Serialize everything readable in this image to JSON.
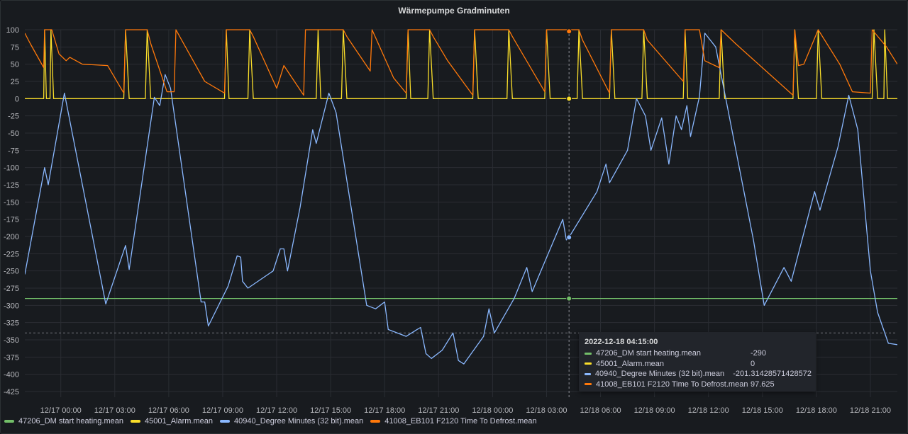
{
  "title": "Wärmepumpe Gradminuten",
  "colors": {
    "s1": "#73bf69",
    "s2": "#fade2a",
    "s3": "#8ab8ff",
    "s4": "#ff780a"
  },
  "legend": [
    {
      "label": "47206_DM start heating.mean",
      "color": "#73bf69"
    },
    {
      "label": "45001_Alarm.mean",
      "color": "#fade2a"
    },
    {
      "label": "40940_Degree Minutes (32 bit).mean",
      "color": "#8ab8ff"
    },
    {
      "label": "41008_EB101 F2120 Time To Defrost.mean",
      "color": "#ff780a"
    }
  ],
  "tooltip": {
    "time": "2022-12-18 04:15:00",
    "rows": [
      {
        "name": "47206_DM start heating.mean",
        "value": "-290",
        "color": "#73bf69"
      },
      {
        "name": "45001_Alarm.mean",
        "value": "0",
        "color": "#fade2a"
      },
      {
        "name": "40940_Degree Minutes (32 bit).mean",
        "value": "-201.31428571428572",
        "color": "#8ab8ff"
      },
      {
        "name": "41008_EB101 F2120 Time To Defrost.mean",
        "value": "97.625",
        "color": "#ff780a"
      }
    ]
  },
  "chart_data": {
    "type": "line",
    "title": "Wärmepumpe Gradminuten",
    "xlabel": "",
    "ylabel": "",
    "x_unit": "hours since 12/16 22:00",
    "x_range": [
      0,
      48.5
    ],
    "ylim": [
      -425,
      100
    ],
    "y_ticks": [
      100,
      75,
      50,
      25,
      0,
      -25,
      -50,
      -75,
      -100,
      -125,
      -150,
      -175,
      -200,
      -225,
      -250,
      -275,
      -300,
      -325,
      -350,
      -375,
      -400,
      -425
    ],
    "x_ticks": [
      {
        "h": 2,
        "label": "12/17 00:00"
      },
      {
        "h": 5,
        "label": "12/17 03:00"
      },
      {
        "h": 8,
        "label": "12/17 06:00"
      },
      {
        "h": 11,
        "label": "12/17 09:00"
      },
      {
        "h": 14,
        "label": "12/17 12:00"
      },
      {
        "h": 17,
        "label": "12/17 15:00"
      },
      {
        "h": 20,
        "label": "12/17 18:00"
      },
      {
        "h": 23,
        "label": "12/17 21:00"
      },
      {
        "h": 26,
        "label": "12/18 00:00"
      },
      {
        "h": 29,
        "label": "12/18 03:00"
      },
      {
        "h": 32,
        "label": "12/18 06:00"
      },
      {
        "h": 35,
        "label": "12/18 09:00"
      },
      {
        "h": 38,
        "label": "12/18 12:00"
      },
      {
        "h": 41,
        "label": "12/18 15:00"
      },
      {
        "h": 44,
        "label": "12/18 18:00"
      },
      {
        "h": 47,
        "label": "12/18 21:00"
      }
    ],
    "grid": true,
    "legend_position": "bottom",
    "crosshair_x": 30.25,
    "series": [
      {
        "name": "47206_DM start heating.mean",
        "color": "#73bf69",
        "points": [
          [
            0,
            -290
          ],
          [
            48.5,
            -290
          ]
        ]
      },
      {
        "name": "45001_Alarm.mean",
        "color": "#fade2a",
        "points": [
          [
            0,
            0
          ],
          [
            1.05,
            0
          ],
          [
            1.1,
            100
          ],
          [
            1.2,
            0
          ],
          [
            1.4,
            0
          ],
          [
            1.45,
            100
          ],
          [
            1.6,
            0
          ],
          [
            5.5,
            0
          ],
          [
            5.6,
            100
          ],
          [
            5.8,
            0
          ],
          [
            6.7,
            0
          ],
          [
            6.8,
            100
          ],
          [
            7.0,
            0
          ],
          [
            11.1,
            0
          ],
          [
            11.2,
            100
          ],
          [
            11.35,
            0
          ],
          [
            12.4,
            0
          ],
          [
            12.5,
            100
          ],
          [
            12.7,
            0
          ],
          [
            16.2,
            0
          ],
          [
            16.3,
            100
          ],
          [
            16.45,
            0
          ],
          [
            17.6,
            0
          ],
          [
            17.7,
            100
          ],
          [
            17.9,
            0
          ],
          [
            21.2,
            0
          ],
          [
            21.3,
            100
          ],
          [
            21.45,
            0
          ],
          [
            22.4,
            0
          ],
          [
            22.5,
            100
          ],
          [
            22.7,
            0
          ],
          [
            24.9,
            0
          ],
          [
            25.0,
            100
          ],
          [
            25.2,
            0
          ],
          [
            26.8,
            0
          ],
          [
            26.9,
            100
          ],
          [
            27.1,
            0
          ],
          [
            28.9,
            0
          ],
          [
            29.0,
            100
          ],
          [
            29.2,
            0
          ],
          [
            30.7,
            0
          ],
          [
            30.8,
            100
          ],
          [
            31.0,
            0
          ],
          [
            32.5,
            0
          ],
          [
            32.6,
            100
          ],
          [
            32.8,
            0
          ],
          [
            34.3,
            0
          ],
          [
            34.4,
            100
          ],
          [
            34.6,
            0
          ],
          [
            36.6,
            0
          ],
          [
            36.7,
            100
          ],
          [
            36.85,
            0
          ],
          [
            38.6,
            0
          ],
          [
            38.7,
            100
          ],
          [
            38.9,
            0
          ],
          [
            42.7,
            0
          ],
          [
            42.8,
            100
          ],
          [
            43.0,
            0
          ],
          [
            44.0,
            0
          ],
          [
            44.1,
            100
          ],
          [
            44.3,
            0
          ],
          [
            47.1,
            0
          ],
          [
            47.2,
            100
          ],
          [
            47.4,
            0
          ],
          [
            47.75,
            0
          ],
          [
            47.8,
            100
          ],
          [
            47.95,
            0
          ],
          [
            48.5,
            0
          ]
        ]
      },
      {
        "name": "40940_Degree Minutes (32 bit).mean",
        "color": "#8ab8ff",
        "points": [
          [
            0,
            -255
          ],
          [
            1.1,
            -100
          ],
          [
            1.3,
            -125
          ],
          [
            2.2,
            8
          ],
          [
            4.5,
            -298
          ],
          [
            5.6,
            -213
          ],
          [
            5.8,
            -248
          ],
          [
            7.2,
            2
          ],
          [
            7.5,
            -10
          ],
          [
            7.8,
            35
          ],
          [
            8.1,
            15
          ],
          [
            9.8,
            -295
          ],
          [
            10.0,
            -295
          ],
          [
            10.2,
            -330
          ],
          [
            11.3,
            -272
          ],
          [
            11.8,
            -228
          ],
          [
            12.0,
            -230
          ],
          [
            12.1,
            -265
          ],
          [
            12.4,
            -275
          ],
          [
            13.8,
            -250
          ],
          [
            14.2,
            -218
          ],
          [
            14.4,
            -218
          ],
          [
            14.6,
            -250
          ],
          [
            15.3,
            -158
          ],
          [
            16.0,
            -45
          ],
          [
            16.2,
            -65
          ],
          [
            16.9,
            8
          ],
          [
            17.3,
            -20
          ],
          [
            19.0,
            -300
          ],
          [
            19.5,
            -305
          ],
          [
            20.0,
            -295
          ],
          [
            20.2,
            -335
          ],
          [
            21.2,
            -345
          ],
          [
            21.8,
            -335
          ],
          [
            22.0,
            -332
          ],
          [
            22.3,
            -370
          ],
          [
            22.6,
            -377
          ],
          [
            23.2,
            -365
          ],
          [
            23.8,
            -340
          ],
          [
            24.1,
            -380
          ],
          [
            24.4,
            -385
          ],
          [
            25.5,
            -345
          ],
          [
            25.8,
            -305
          ],
          [
            26.1,
            -340
          ],
          [
            27.2,
            -290
          ],
          [
            27.9,
            -245
          ],
          [
            28.2,
            -280
          ],
          [
            29.9,
            -175
          ],
          [
            30.1,
            -205
          ],
          [
            30.25,
            -201
          ],
          [
            31.8,
            -135
          ],
          [
            32.3,
            -95
          ],
          [
            32.5,
            -122
          ],
          [
            33.5,
            -75
          ],
          [
            34.0,
            0
          ],
          [
            34.5,
            -25
          ],
          [
            34.8,
            -75
          ],
          [
            35.4,
            -28
          ],
          [
            35.8,
            -95
          ],
          [
            36.2,
            -25
          ],
          [
            36.5,
            -45
          ],
          [
            36.8,
            -10
          ],
          [
            37.0,
            -55
          ],
          [
            37.5,
            3
          ],
          [
            37.8,
            95
          ],
          [
            38.4,
            75
          ],
          [
            40.5,
            -205
          ],
          [
            41.1,
            -300
          ],
          [
            42.2,
            -245
          ],
          [
            42.6,
            -265
          ],
          [
            43.9,
            -135
          ],
          [
            44.2,
            -162
          ],
          [
            45.2,
            -70
          ],
          [
            45.8,
            5
          ],
          [
            46.3,
            -45
          ],
          [
            47.0,
            -250
          ],
          [
            47.4,
            -310
          ],
          [
            48.0,
            -355
          ],
          [
            48.5,
            -357
          ]
        ]
      },
      {
        "name": "41008_EB101 F2120 Time To Defrost.mean",
        "color": "#ff780a",
        "points": [
          [
            0,
            95
          ],
          [
            0.3,
            80
          ],
          [
            1.05,
            45
          ],
          [
            1.1,
            100
          ],
          [
            1.5,
            100
          ],
          [
            1.9,
            65
          ],
          [
            2.3,
            55
          ],
          [
            2.5,
            60
          ],
          [
            3.2,
            50
          ],
          [
            4.6,
            48
          ],
          [
            5.5,
            8
          ],
          [
            5.6,
            100
          ],
          [
            6.8,
            100
          ],
          [
            7.0,
            80
          ],
          [
            7.9,
            10
          ],
          [
            8.3,
            10
          ],
          [
            8.4,
            100
          ],
          [
            10.0,
            25
          ],
          [
            11.1,
            8
          ],
          [
            11.2,
            100
          ],
          [
            12.5,
            100
          ],
          [
            12.7,
            90
          ],
          [
            14.0,
            15
          ],
          [
            14.4,
            48
          ],
          [
            15.5,
            5
          ],
          [
            15.6,
            100
          ],
          [
            17.7,
            100
          ],
          [
            17.9,
            90
          ],
          [
            19.2,
            40
          ],
          [
            19.3,
            100
          ],
          [
            20.5,
            30
          ],
          [
            21.2,
            8
          ],
          [
            21.3,
            100
          ],
          [
            22.5,
            100
          ],
          [
            22.7,
            90
          ],
          [
            23.5,
            55
          ],
          [
            24.9,
            5
          ],
          [
            25.0,
            100
          ],
          [
            26.9,
            100
          ],
          [
            27.1,
            90
          ],
          [
            28.9,
            10
          ],
          [
            29.0,
            100
          ],
          [
            30.8,
            100
          ],
          [
            31.0,
            85
          ],
          [
            32.5,
            8
          ],
          [
            32.6,
            100
          ],
          [
            34.4,
            100
          ],
          [
            34.6,
            85
          ],
          [
            36.6,
            25
          ],
          [
            36.7,
            100
          ],
          [
            37.5,
            100
          ],
          [
            37.8,
            55
          ],
          [
            38.6,
            45
          ],
          [
            38.7,
            100
          ],
          [
            39.5,
            80
          ],
          [
            42.7,
            5
          ],
          [
            42.8,
            100
          ],
          [
            43.0,
            48
          ],
          [
            43.3,
            50
          ],
          [
            44.1,
            100
          ],
          [
            45.3,
            50
          ],
          [
            46.0,
            10
          ],
          [
            47.0,
            8
          ],
          [
            47.1,
            100
          ],
          [
            47.9,
            75
          ],
          [
            48.5,
            50
          ]
        ]
      }
    ],
    "tooltip_markers": [
      {
        "series": "41008_EB101 F2120 Time To Defrost.mean",
        "x": 30.25,
        "y": 97.625
      },
      {
        "series": "45001_Alarm.mean",
        "x": 30.25,
        "y": 0
      },
      {
        "series": "40940_Degree Minutes (32 bit).mean",
        "x": 30.25,
        "y": -201.31
      },
      {
        "series": "47206_DM start heating.mean",
        "x": 30.25,
        "y": -290
      }
    ],
    "dashed_hline_y": -340
  }
}
